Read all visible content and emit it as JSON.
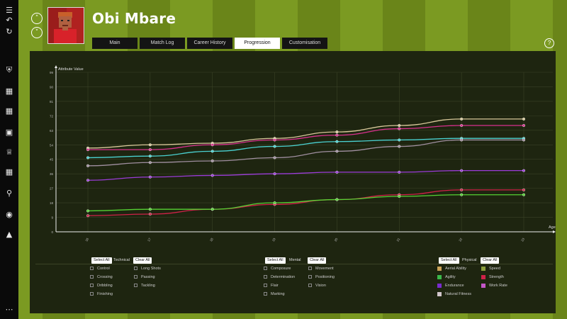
{
  "player": {
    "name": "Obi Mbare"
  },
  "nav": {
    "up_icon": "chevron-up-icon",
    "down_icon": "chevron-down-icon"
  },
  "sidebar": {
    "items": [
      "back-icon",
      "refresh-icon",
      "shield-icon",
      "hierarchy-icon",
      "dumbbell-icon",
      "clipboard-icon",
      "trophy-icon",
      "calendar-icon",
      "search-icon",
      "globe-icon",
      "cart-icon",
      "more-icon"
    ]
  },
  "tabs": [
    {
      "label": "Main"
    },
    {
      "label": "Match Log"
    },
    {
      "label": "Career History"
    },
    {
      "label": "Progression"
    },
    {
      "label": "Customisation"
    }
  ],
  "help": {
    "label": "?"
  },
  "filters": {
    "technical": {
      "select_all": "Select All",
      "group": "Technical",
      "clear_all": "Clear All",
      "items": [
        "Control",
        "Long Shots",
        "Crossing",
        "Passing",
        "Dribbling",
        "Tackling",
        "Finishing"
      ]
    },
    "mental": {
      "select_all": "Select All",
      "group": "Mental",
      "clear_all": "Clear All",
      "items": [
        "Composure",
        "Movement",
        "Determination",
        "Positioning",
        "Flair",
        "Vision",
        "Marking"
      ]
    },
    "physical": {
      "select_all": "Select All",
      "group": "Physical",
      "clear_all": "Clear All",
      "items": [
        {
          "label": "Aerial Ability",
          "color": "#c9a257"
        },
        {
          "label": "Speed",
          "color": "#8a9e3c"
        },
        {
          "label": "Agility",
          "color": "#3bb84a"
        },
        {
          "label": "Strength",
          "color": "#cf2148"
        },
        {
          "label": "Endurance",
          "color": "#7a2bd0"
        },
        {
          "label": "Work Rate",
          "color": "#c457c8"
        },
        {
          "label": "Natural Fitness",
          "color": "#d2c6cb"
        }
      ]
    }
  },
  "chart_data": {
    "type": "line",
    "ylabel": "Attribute Value",
    "xlabel": "Age",
    "ylim": [
      0,
      99
    ],
    "yticks": [
      0,
      9,
      18,
      27,
      36,
      45,
      54,
      63,
      72,
      81,
      90,
      99
    ],
    "x": [
      "16",
      "17",
      "18",
      "19",
      "20",
      "21",
      "22",
      "23"
    ],
    "series": [
      {
        "color": "#d8c89a",
        "values": [
          52,
          54,
          55,
          58,
          62,
          66,
          70,
          70
        ]
      },
      {
        "color": "#d8308e",
        "values": [
          51,
          51,
          54,
          57,
          60,
          64,
          66,
          66
        ]
      },
      {
        "color": "#4ad1d1",
        "values": [
          46,
          47,
          50,
          53,
          56,
          57,
          58,
          58
        ]
      },
      {
        "color": "#a08fa0",
        "values": [
          41,
          43,
          44,
          46,
          50,
          53,
          57,
          57
        ]
      },
      {
        "color": "#9b3cd8",
        "values": [
          32,
          34,
          35,
          36,
          37,
          37,
          38,
          38
        ]
      },
      {
        "color": "#cf2148",
        "values": [
          10,
          11,
          14,
          17,
          20,
          23,
          26,
          26
        ]
      },
      {
        "color": "#55d233",
        "values": [
          13,
          14,
          14,
          18,
          20,
          22,
          23,
          23
        ]
      }
    ]
  }
}
